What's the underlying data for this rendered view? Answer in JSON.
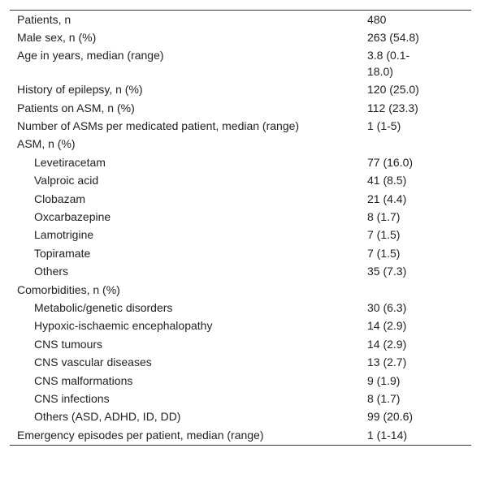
{
  "table": {
    "rows": [
      {
        "label": "Patients, n",
        "value": "480"
      },
      {
        "label": "Male sex, n (%)",
        "value": "263 (54.8)"
      },
      {
        "label": "Age in years, median (range)",
        "value": "3.8 (0.1-18.0)"
      },
      {
        "label": "History of epilepsy, n (%)",
        "value": "120 (25.0)"
      },
      {
        "label": "Patients on ASM, n (%)",
        "value": "112 (23.3)"
      },
      {
        "label": "Number of ASMs per medicated patient, median (range)",
        "value": "1 (1-5)"
      },
      {
        "label": "ASM, n (%)",
        "items": [
          {
            "label": "Levetiracetam",
            "value": "77 (16.0)"
          },
          {
            "label": "Valproic acid",
            "value": "41 (8.5)"
          },
          {
            "label": "Clobazam",
            "value": "21 (4.4)"
          },
          {
            "label": "Oxcarbazepine",
            "value": "8 (1.7)"
          },
          {
            "label": "Lamotrigine",
            "value": "7 (1.5)"
          },
          {
            "label": "Topiramate",
            "value": "7 (1.5)"
          },
          {
            "label": "Others",
            "value": "35 (7.3)"
          }
        ]
      },
      {
        "label": "Comorbidities, n (%)",
        "items": [
          {
            "label": "Metabolic/genetic disorders",
            "value": "30 (6.3)"
          },
          {
            "label": "Hypoxic-ischaemic encephalopathy",
            "value": "14 (2.9)"
          },
          {
            "label": "CNS tumours",
            "value": "14 (2.9)"
          },
          {
            "label": "CNS vascular diseases",
            "value": "13 (2.7)"
          },
          {
            "label": "CNS malformations",
            "value": "9 (1.9)"
          },
          {
            "label": "CNS infections",
            "value": "8 (1.7)"
          },
          {
            "label": "Others (ASD, ADHD, ID, DD)",
            "value": "99 (20.6)"
          }
        ]
      },
      {
        "label": "Emergency episodes per patient, median (range)",
        "value": "1 (1-14)"
      }
    ]
  }
}
